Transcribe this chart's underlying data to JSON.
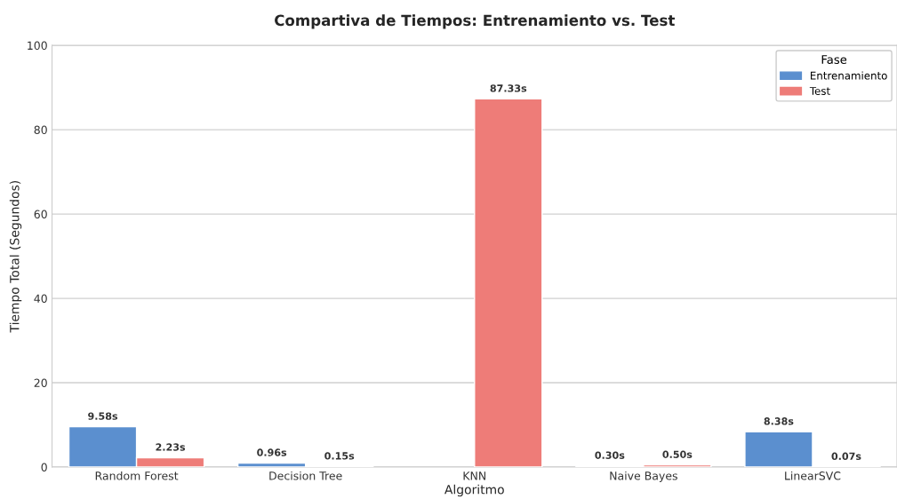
{
  "chart_data": {
    "type": "bar",
    "title": "Compartiva de Tiempos: Entrenamiento vs. Test",
    "xlabel": "Algoritmo",
    "ylabel": "Tiempo Total (Segundos)",
    "categories": [
      "Random Forest",
      "Decision Tree",
      "KNN",
      "Naive Bayes",
      "LinearSVC"
    ],
    "series": [
      {
        "name": "Entrenamiento",
        "color": "#5b8fcf",
        "values": [
          9.58,
          0.96,
          null,
          0.3,
          8.38
        ],
        "value_labels": [
          "9.58s",
          "0.96s",
          null,
          "0.30s",
          "8.38s"
        ]
      },
      {
        "name": "Test",
        "color": "#ee7c78",
        "values": [
          2.23,
          0.15,
          87.33,
          0.5,
          0.07
        ],
        "value_labels": [
          "2.23s",
          "0.15s",
          "87.33s",
          "0.50s",
          "0.07s"
        ]
      }
    ],
    "legend_title": "Fase",
    "legend": "top right",
    "ylim": [
      0,
      100
    ],
    "yticks": [
      0,
      20,
      40,
      60,
      80,
      100
    ],
    "grid": "y"
  }
}
